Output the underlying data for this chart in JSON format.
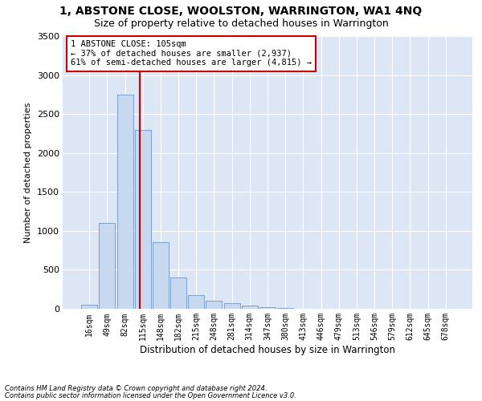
{
  "title": "1, ABSTONE CLOSE, WOOLSTON, WARRINGTON, WA1 4NQ",
  "subtitle": "Size of property relative to detached houses in Warrington",
  "xlabel": "Distribution of detached houses by size in Warrington",
  "ylabel": "Number of detached properties",
  "bin_labels": [
    "16sqm",
    "49sqm",
    "82sqm",
    "115sqm",
    "148sqm",
    "182sqm",
    "215sqm",
    "248sqm",
    "281sqm",
    "314sqm",
    "347sqm",
    "380sqm",
    "413sqm",
    "446sqm",
    "479sqm",
    "513sqm",
    "546sqm",
    "579sqm",
    "612sqm",
    "645sqm",
    "678sqm"
  ],
  "bar_values": [
    50,
    1100,
    2750,
    2300,
    850,
    400,
    175,
    100,
    70,
    40,
    20,
    10,
    5,
    3,
    2,
    1,
    1,
    1,
    1,
    0,
    0
  ],
  "bar_color": "#c8d8ee",
  "bar_edge_color": "#7096c8",
  "vline_color": "#cc0000",
  "annotation_text": "1 ABSTONE CLOSE: 105sqm\n← 37% of detached houses are smaller (2,937)\n61% of semi-detached houses are larger (4,815) →",
  "annotation_box_facecolor": "#ffffff",
  "annotation_box_edgecolor": "#cc0000",
  "ylim": [
    0,
    3500
  ],
  "yticks": [
    0,
    500,
    1000,
    1500,
    2000,
    2500,
    3000,
    3500
  ],
  "footer_line1": "Contains HM Land Registry data © Crown copyright and database right 2024.",
  "footer_line2": "Contains public sector information licensed under the Open Government Licence v3.0.",
  "fig_bg_color": "#ffffff",
  "plot_bg_color": "#dce6f5",
  "grid_color": "#ffffff",
  "title_fontsize": 10,
  "subtitle_fontsize": 9
}
